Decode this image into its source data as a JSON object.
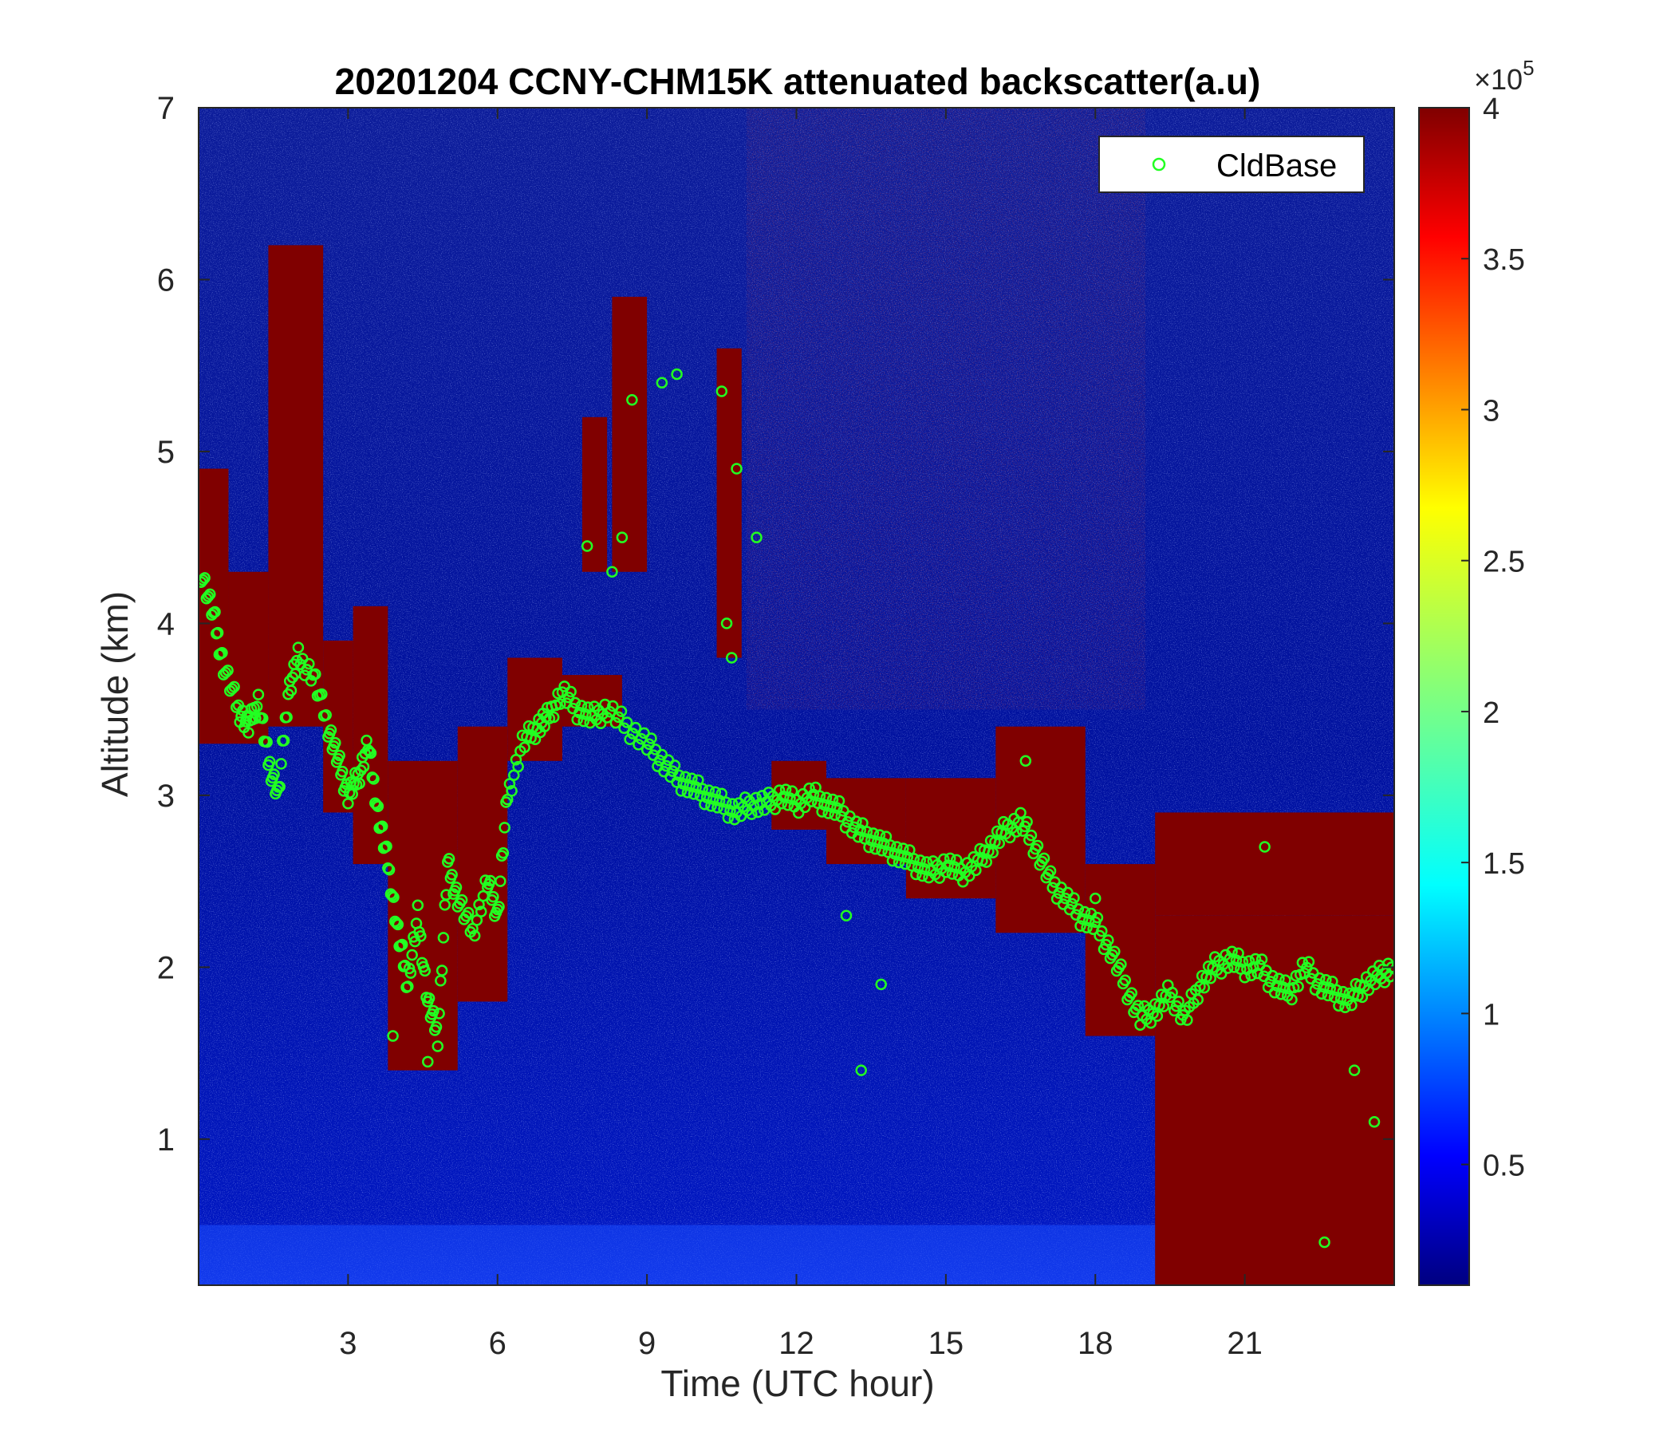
{
  "chart_data": {
    "type": "heatmap",
    "title": "20201204 CCNY-CHM15K attenuated backscatter(a.u)",
    "xlabel": "Time (UTC hour)",
    "ylabel": "Altitude (km)",
    "xlim": [
      0,
      24
    ],
    "ylim": [
      0.15,
      7
    ],
    "xticks": [
      3,
      6,
      9,
      12,
      15,
      18,
      21
    ],
    "yticks": [
      1,
      2,
      3,
      4,
      5,
      6,
      7
    ],
    "legend": {
      "entries": [
        "CldBase"
      ],
      "placement": "top-right"
    },
    "colorbar": {
      "colormap": "jet",
      "range": [
        0.1,
        4
      ],
      "ticks": [
        0.5,
        1,
        1.5,
        2,
        2.5,
        3,
        3.5,
        4
      ],
      "tick_labels": [
        "0.5",
        "1",
        "1.5",
        "2",
        "2.5",
        "3",
        "3.5",
        "4"
      ],
      "multiplier_base": "×10",
      "multiplier_exponent": "5"
    },
    "backscatter_features": {
      "note": "hours vs km; [t0, t1, base_km, top_km]",
      "cloud_layers": [
        [
          0.0,
          0.6,
          3.3,
          4.9
        ],
        [
          0.6,
          1.4,
          3.3,
          4.3
        ],
        [
          1.4,
          2.5,
          3.4,
          6.2
        ],
        [
          2.5,
          3.1,
          2.9,
          3.9
        ],
        [
          3.1,
          3.8,
          2.6,
          4.1
        ],
        [
          3.8,
          5.2,
          1.4,
          3.2
        ],
        [
          5.2,
          6.2,
          1.8,
          3.4
        ],
        [
          6.2,
          7.3,
          3.2,
          3.8
        ],
        [
          7.3,
          8.5,
          3.4,
          3.7
        ],
        [
          7.7,
          8.2,
          4.3,
          5.2
        ],
        [
          8.3,
          9.0,
          4.3,
          5.9
        ],
        [
          10.4,
          10.9,
          3.8,
          5.6
        ],
        [
          11.5,
          12.6,
          2.8,
          3.2
        ],
        [
          12.6,
          14.2,
          2.6,
          3.1
        ],
        [
          14.2,
          16.0,
          2.4,
          3.1
        ],
        [
          16.0,
          17.8,
          2.2,
          3.4
        ],
        [
          17.8,
          19.2,
          1.6,
          2.6
        ],
        [
          19.2,
          24.0,
          0.15,
          2.3
        ],
        [
          19.2,
          24.0,
          2.3,
          2.9
        ]
      ],
      "high_aerosol_region": [
        11.0,
        19.0,
        3.5,
        7.0
      ],
      "surface_layer_top_km": 0.5
    },
    "series": [
      {
        "name": "CldBase",
        "color": "#22ff22",
        "marker": "circle",
        "points": [
          [
            0.05,
            4.3
          ],
          [
            0.3,
            4.05
          ],
          [
            0.5,
            3.75
          ],
          [
            0.8,
            3.5
          ],
          [
            1.0,
            3.4
          ],
          [
            1.2,
            3.55
          ],
          [
            1.4,
            3.2
          ],
          [
            1.6,
            3.0
          ],
          [
            1.8,
            3.6
          ],
          [
            2.0,
            3.8
          ],
          [
            2.3,
            3.7
          ],
          [
            2.6,
            3.4
          ],
          [
            2.8,
            3.2
          ],
          [
            3.0,
            3.0
          ],
          [
            3.2,
            3.1
          ],
          [
            3.4,
            3.3
          ],
          [
            3.6,
            2.9
          ],
          [
            3.8,
            2.6
          ],
          [
            4.0,
            2.2
          ],
          [
            4.2,
            1.9
          ],
          [
            4.4,
            2.3
          ],
          [
            4.6,
            1.8
          ],
          [
            4.8,
            1.6
          ],
          [
            5.0,
            2.6
          ],
          [
            5.2,
            2.4
          ],
          [
            5.5,
            2.2
          ],
          [
            5.8,
            2.5
          ],
          [
            6.0,
            2.3
          ],
          [
            6.2,
            3.0
          ],
          [
            6.5,
            3.3
          ],
          [
            6.8,
            3.4
          ],
          [
            7.0,
            3.45
          ],
          [
            7.3,
            3.6
          ],
          [
            7.6,
            3.5
          ],
          [
            7.9,
            3.45
          ],
          [
            8.2,
            3.5
          ],
          [
            8.6,
            3.4
          ],
          [
            9.0,
            3.3
          ],
          [
            9.3,
            3.2
          ],
          [
            9.6,
            3.1
          ],
          [
            9.9,
            3.05
          ],
          [
            10.2,
            3.0
          ],
          [
            10.5,
            2.95
          ],
          [
            10.8,
            2.9
          ],
          [
            11.1,
            2.95
          ],
          [
            11.4,
            2.95
          ],
          [
            11.7,
            3.0
          ],
          [
            12.0,
            2.95
          ],
          [
            12.3,
            3.0
          ],
          [
            12.6,
            2.95
          ],
          [
            12.9,
            2.9
          ],
          [
            13.2,
            2.8
          ],
          [
            13.5,
            2.75
          ],
          [
            13.8,
            2.7
          ],
          [
            14.1,
            2.65
          ],
          [
            14.4,
            2.6
          ],
          [
            14.7,
            2.55
          ],
          [
            15.0,
            2.6
          ],
          [
            15.3,
            2.55
          ],
          [
            15.6,
            2.6
          ],
          [
            15.9,
            2.7
          ],
          [
            16.2,
            2.8
          ],
          [
            16.5,
            2.85
          ],
          [
            16.8,
            2.7
          ],
          [
            17.1,
            2.5
          ],
          [
            17.4,
            2.4
          ],
          [
            17.7,
            2.3
          ],
          [
            18.0,
            2.25
          ],
          [
            18.3,
            2.1
          ],
          [
            18.6,
            1.9
          ],
          [
            18.9,
            1.7
          ],
          [
            19.2,
            1.75
          ],
          [
            19.5,
            1.85
          ],
          [
            19.8,
            1.7
          ],
          [
            20.1,
            1.9
          ],
          [
            20.4,
            2.0
          ],
          [
            20.7,
            2.05
          ],
          [
            21.0,
            2.0
          ],
          [
            21.3,
            2.0
          ],
          [
            21.6,
            1.9
          ],
          [
            21.9,
            1.85
          ],
          [
            22.2,
            2.0
          ],
          [
            22.5,
            1.9
          ],
          [
            22.8,
            1.85
          ],
          [
            23.1,
            1.8
          ],
          [
            23.4,
            1.9
          ],
          [
            23.7,
            1.95
          ],
          [
            23.95,
            2.0
          ]
        ],
        "outliers": [
          [
            7.8,
            4.45
          ],
          [
            8.3,
            4.3
          ],
          [
            8.5,
            4.5
          ],
          [
            8.7,
            5.3
          ],
          [
            9.3,
            5.4
          ],
          [
            9.6,
            5.45
          ],
          [
            10.5,
            5.35
          ],
          [
            10.8,
            4.9
          ],
          [
            10.6,
            4.0
          ],
          [
            10.7,
            3.8
          ],
          [
            11.2,
            4.5
          ],
          [
            13.3,
            1.4
          ],
          [
            13.7,
            1.9
          ],
          [
            16.6,
            3.2
          ],
          [
            22.6,
            0.4
          ],
          [
            23.6,
            1.1
          ],
          [
            4.6,
            1.45
          ],
          [
            3.9,
            1.6
          ],
          [
            13.0,
            2.3
          ],
          [
            18.0,
            2.4
          ],
          [
            21.4,
            2.7
          ],
          [
            23.2,
            1.4
          ]
        ]
      }
    ]
  }
}
